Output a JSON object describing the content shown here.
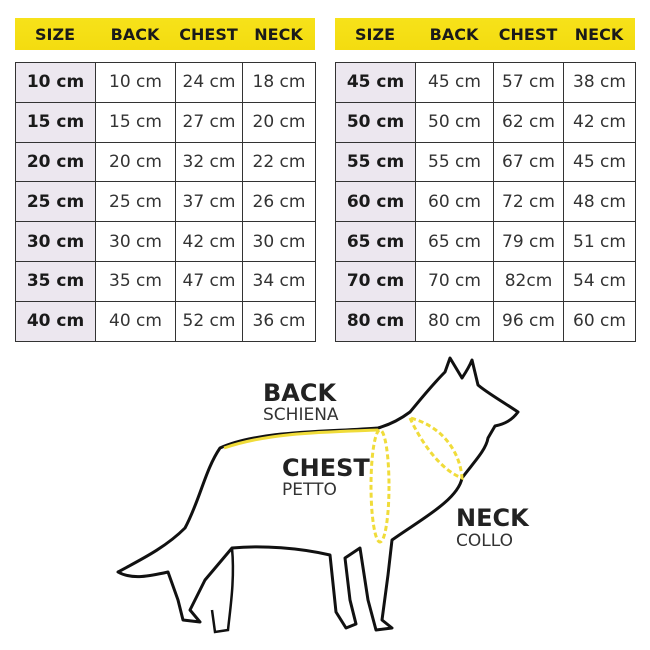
{
  "headers": [
    "SIZE",
    "BACK",
    "CHEST",
    "NECK"
  ],
  "left_rows": [
    [
      "10 cm",
      "10 cm",
      "24 cm",
      "18 cm"
    ],
    [
      "15 cm",
      "15 cm",
      "27 cm",
      "20 cm"
    ],
    [
      "20 cm",
      "20 cm",
      "32 cm",
      "22 cm"
    ],
    [
      "25 cm",
      "25 cm",
      "37 cm",
      "26 cm"
    ],
    [
      "30 cm",
      "30 cm",
      "42 cm",
      "30 cm"
    ],
    [
      "35 cm",
      "35 cm",
      "47 cm",
      "34 cm"
    ],
    [
      "40 cm",
      "40 cm",
      "52 cm",
      "36 cm"
    ]
  ],
  "right_rows": [
    [
      "45 cm",
      "45 cm",
      "57 cm",
      "38 cm"
    ],
    [
      "50 cm",
      "50 cm",
      "62 cm",
      "42 cm"
    ],
    [
      "55 cm",
      "55 cm",
      "67 cm",
      "45 cm"
    ],
    [
      "60 cm",
      "60 cm",
      "72 cm",
      "48 cm"
    ],
    [
      "65 cm",
      "65 cm",
      "79 cm",
      "51 cm"
    ],
    [
      "70 cm",
      "70 cm",
      "82cm",
      "54 cm"
    ],
    [
      "80 cm",
      "80 cm",
      "96 cm",
      "60 cm"
    ]
  ],
  "labels": {
    "back": "BACK",
    "back_it": "SCHIENA",
    "chest": "CHEST",
    "chest_it": "PETTO",
    "neck": "NECK",
    "neck_it": "COLLO"
  },
  "colors": {
    "header": "#f5df14",
    "size_cell": "#ece7ef",
    "measure_line": "#f0dc3a"
  }
}
